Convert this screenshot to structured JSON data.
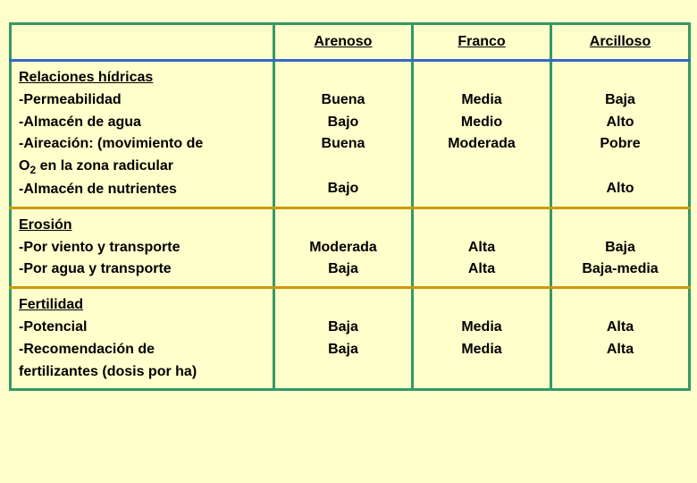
{
  "colors": {
    "page_bg": "#ffffcc",
    "table_border": "#339966",
    "header_underline": "#3366cc",
    "section_sep": "#cc9900",
    "text": "#000000"
  },
  "typography": {
    "font_family": "Verdana",
    "font_size_pt": 12,
    "font_weight": "bold"
  },
  "header": {
    "col_arenoso": "Arenoso",
    "col_franco": "Franco",
    "col_arcilloso": "Arcilloso"
  },
  "sections": {
    "hidricas": {
      "title": "Relaciones hídricas",
      "rows": [
        {
          "label": "-Permeabilidad",
          "arenoso": "Buena",
          "franco": "Media",
          "arcilloso": "Baja"
        },
        {
          "label": "-Almacén de agua",
          "arenoso": "Bajo",
          "franco": "Medio",
          "arcilloso": "Alto"
        },
        {
          "label": "-Aireación: (movimiento de",
          "arenoso": "Buena",
          "franco": "Moderada",
          "arcilloso": "Pobre"
        },
        {
          "label_prefix": " O",
          "label_sub": "2",
          "label_suffix": " en la zona radicular",
          "arenoso": "",
          "franco": "",
          "arcilloso": ""
        },
        {
          "label": "-Almacén de nutrientes",
          "arenoso": "Bajo",
          "franco": "",
          "arcilloso": "Alto"
        }
      ]
    },
    "erosion": {
      "title": "Erosión",
      "rows": [
        {
          "label": "-Por viento y transporte",
          "arenoso": "Moderada",
          "franco": "Alta",
          "arcilloso": "Baja"
        },
        {
          "label": "-Por agua y transporte",
          "arenoso": "Baja",
          "franco": "Alta",
          "arcilloso": "Baja-media"
        }
      ]
    },
    "fertilidad": {
      "title": "Fertilidad",
      "rows": [
        {
          "label": "-Potencial",
          "arenoso": "Baja",
          "franco": "Media",
          "arcilloso": "Alta"
        },
        {
          "label": "-Recomendación de",
          "arenoso": "Baja",
          "franco": "Media",
          "arcilloso": "Alta"
        },
        {
          "label": " fertilizantes (dosis por ha)",
          "arenoso": "",
          "franco": "",
          "arcilloso": ""
        }
      ]
    }
  }
}
